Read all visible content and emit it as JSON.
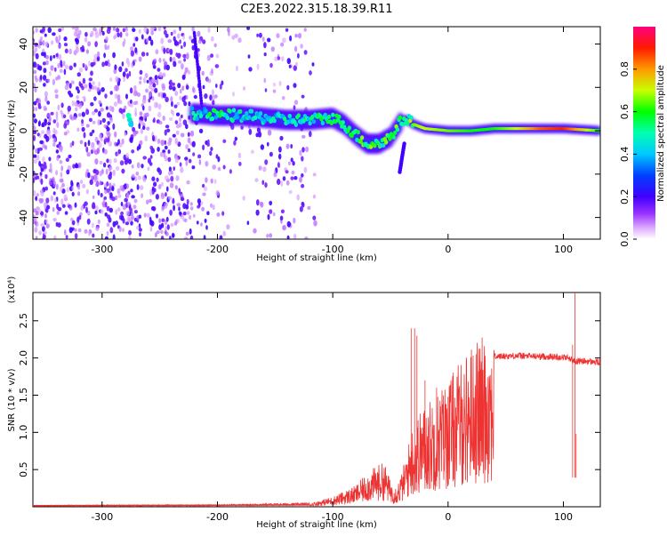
{
  "title": "C2E3.2022.315.18.39.R11",
  "chart_data": [
    {
      "type": "heatmap",
      "xlabel": "Height of straight line (km)",
      "ylabel": "Frequency (Hz)",
      "xlim": [
        -360,
        132
      ],
      "ylim": [
        -50,
        48
      ],
      "xticks": [
        -300,
        -200,
        -100,
        0,
        100
      ],
      "yticks": [
        -40,
        -20,
        0,
        20,
        40
      ],
      "colorbar": {
        "label": "Normalized spectral amplitude",
        "range": [
          0,
          1
        ],
        "ticks": [
          0.0,
          0.2,
          0.4,
          0.6,
          0.8
        ],
        "colors": [
          "#ffffff",
          "#cc66ff",
          "#8000ff",
          "#0000ff",
          "#00ffff",
          "#00ff00",
          "#ffff00",
          "#ff8000",
          "#ff0000",
          "#ff00aa"
        ]
      },
      "ridge": {
        "x": [
          -220,
          -200,
          -180,
          -160,
          -140,
          -120,
          -100,
          -90,
          -80,
          -70,
          -60,
          -50,
          -40,
          -35,
          -30,
          -20,
          0,
          20,
          40,
          60,
          80,
          100,
          132
        ],
        "y": [
          8,
          7,
          7,
          6,
          5,
          5,
          6,
          3,
          -2,
          -6,
          -6,
          -3,
          5,
          5,
          3,
          1,
          0,
          0,
          1,
          1,
          1,
          1,
          0
        ],
        "amp": [
          0.45,
          0.5,
          0.5,
          0.45,
          0.45,
          0.5,
          0.5,
          0.55,
          0.55,
          0.6,
          0.6,
          0.6,
          0.6,
          0.6,
          0.65,
          0.7,
          0.65,
          0.6,
          0.6,
          0.7,
          0.85,
          0.9,
          0.6
        ]
      }
    },
    {
      "type": "line",
      "xlabel": "Height of straight line (km)",
      "ylabel": "SNR (10 * v/v)",
      "multiplier": "(x10⁴)",
      "xlim": [
        -360,
        132
      ],
      "ylim": [
        0,
        28800
      ],
      "xticks": [
        -300,
        -200,
        -100,
        0,
        100
      ],
      "yticks": [
        0.5,
        1.0,
        1.5,
        2.0,
        2.5
      ],
      "color": "#ee3333",
      "envelope": {
        "x": [
          -360,
          -200,
          -120,
          -100,
          -80,
          -70,
          -60,
          -55,
          -50,
          -45,
          -40,
          -35,
          -30,
          -25,
          -20,
          -10,
          0,
          10,
          20,
          30,
          40,
          60,
          80,
          100,
          105,
          110,
          115,
          132
        ],
        "y": [
          150,
          200,
          400,
          1200,
          2500,
          4000,
          5000,
          5200,
          3000,
          2500,
          4000,
          7000,
          10000,
          11000,
          12000,
          13500,
          15000,
          17000,
          19000,
          20000,
          20200,
          20300,
          20200,
          20100,
          20000,
          19500,
          19600,
          19400
        ]
      },
      "spikes": [
        {
          "x": -32,
          "y": 24000
        },
        {
          "x": -29,
          "y": 24000
        },
        {
          "x": -27,
          "y": 23000
        },
        {
          "x": -20,
          "y": 17000
        },
        {
          "x": -10,
          "y": 16000
        },
        {
          "x": 108,
          "y": 21800
        },
        {
          "x": 110,
          "y": 28800
        },
        {
          "x": 111,
          "y": 9800
        }
      ]
    }
  ]
}
